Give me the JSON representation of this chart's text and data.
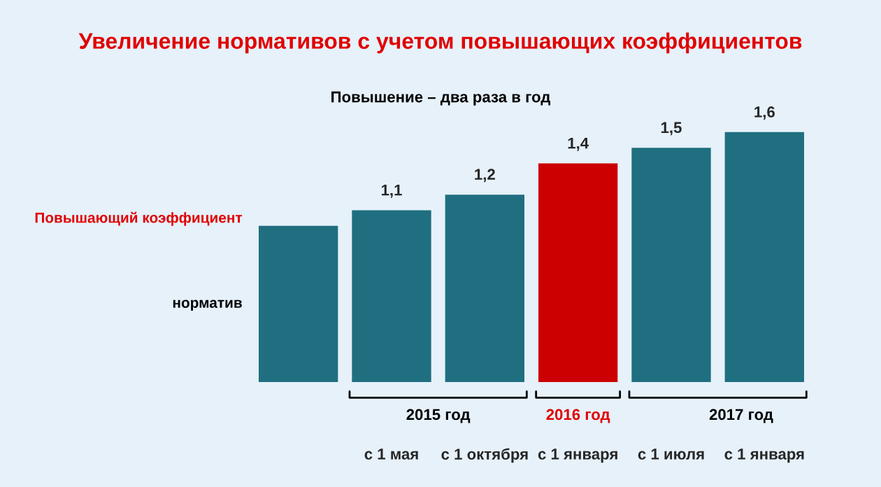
{
  "chart_data": {
    "type": "bar",
    "title": "Увеличение нормативов с учетом повышающих коэффициентов",
    "subtitle": "Повышение – два раза в год",
    "categories": [
      null,
      "с 1 мая",
      "с 1 октября",
      "с 1 января",
      "с 1 июля",
      "с 1 января"
    ],
    "values": [
      1,
      1.1,
      1.2,
      1.4,
      1.5,
      1.6
    ],
    "value_labels": [
      null,
      "1,1",
      "1,2",
      "1,4",
      "1,5",
      "1,6"
    ],
    "colors": [
      "#1f6f80",
      "#1f6f80",
      "#1f6f80",
      "#cc0000",
      "#1f6f80",
      "#1f6f80"
    ],
    "annotations": [
      "Повышающий коэффициент",
      "норматив",
      "2015 год",
      "2016 год",
      "2017 год"
    ],
    "grid": false,
    "legend": false
  }
}
